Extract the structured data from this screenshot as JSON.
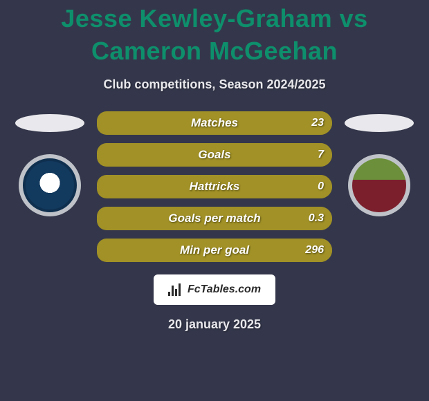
{
  "title": "Jesse Kewley-Graham vs Cameron McGeehan",
  "subtitle": "Club competitions, Season 2024/2025",
  "date": "20 january 2025",
  "logo_text": "FcTables.com",
  "colors": {
    "background": "#34374b",
    "title": "#0e8f6c",
    "bar": "#a19126",
    "text": "#ffffff"
  },
  "bars": [
    {
      "label": "Matches",
      "left": "",
      "right": "23",
      "left_pct": 4,
      "right_pct": 96
    },
    {
      "label": "Goals",
      "left": "",
      "right": "7",
      "left_pct": 4,
      "right_pct": 96
    },
    {
      "label": "Hattricks",
      "left": "",
      "right": "0",
      "left_pct": 4,
      "right_pct": 96
    },
    {
      "label": "Goals per match",
      "left": "",
      "right": "0.3",
      "left_pct": 4,
      "right_pct": 96
    },
    {
      "label": "Min per goal",
      "left": "",
      "right": "296",
      "left_pct": 4,
      "right_pct": 96
    }
  ]
}
